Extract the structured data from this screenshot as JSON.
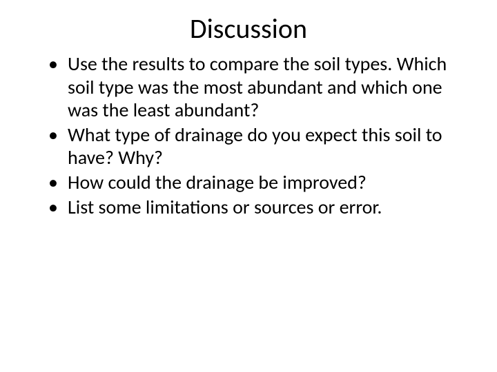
{
  "slide": {
    "title": "Discussion",
    "title_fontsize": 40,
    "bullet_fontsize": 28,
    "background_color": "#ffffff",
    "text_color": "#000000",
    "font_family": "Calibri",
    "bullets": [
      "Use the results to compare the soil types. Which soil type was the most abundant and which one was the least abundant?",
      "What type of drainage do you expect this soil to have? Why?",
      "How could the drainage be improved?",
      "List some limitations or sources or error."
    ]
  }
}
